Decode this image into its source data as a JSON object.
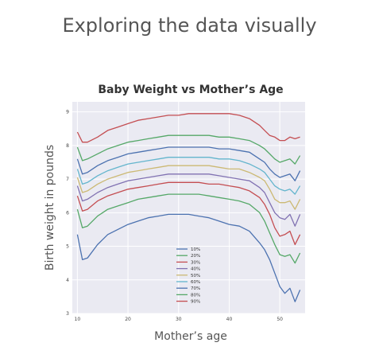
{
  "slide": {
    "title": "Exploring the data visually"
  },
  "chart_data": {
    "type": "line",
    "title": "Baby Weight vs Mother’s Age",
    "xlabel": "Mother’s age",
    "ylabel": "Birth weight in pounds",
    "xlim": [
      9,
      55
    ],
    "ylim": [
      3,
      9.3
    ],
    "xticks": [
      10,
      20,
      30,
      40,
      50
    ],
    "yticks": [
      3,
      4,
      5,
      6,
      7,
      8,
      9
    ],
    "grid": true,
    "legend_position": "bottom-center",
    "x": [
      10,
      11,
      12,
      14,
      16,
      18,
      20,
      22,
      24,
      26,
      28,
      30,
      32,
      34,
      36,
      38,
      40,
      42,
      44,
      46,
      47,
      48,
      49,
      50,
      51,
      52,
      53,
      54
    ],
    "series": [
      {
        "name": "10%",
        "color": "#4c72b0",
        "values": [
          5.35,
          4.6,
          4.65,
          5.05,
          5.35,
          5.5,
          5.65,
          5.75,
          5.85,
          5.9,
          5.95,
          5.95,
          5.95,
          5.9,
          5.85,
          5.75,
          5.65,
          5.6,
          5.45,
          5.1,
          4.9,
          4.6,
          4.2,
          3.8,
          3.6,
          3.75,
          3.35,
          3.7
        ]
      },
      {
        "name": "20%",
        "color": "#55a868",
        "values": [
          6.1,
          5.55,
          5.6,
          5.9,
          6.1,
          6.2,
          6.3,
          6.4,
          6.45,
          6.5,
          6.55,
          6.55,
          6.55,
          6.55,
          6.5,
          6.45,
          6.4,
          6.35,
          6.25,
          6.0,
          5.75,
          5.4,
          5.05,
          4.75,
          4.7,
          4.75,
          4.5,
          4.8
        ]
      },
      {
        "name": "30%",
        "color": "#c44e52",
        "values": [
          6.5,
          6.05,
          6.1,
          6.35,
          6.5,
          6.6,
          6.7,
          6.75,
          6.8,
          6.85,
          6.9,
          6.9,
          6.9,
          6.9,
          6.85,
          6.85,
          6.8,
          6.75,
          6.65,
          6.45,
          6.25,
          5.95,
          5.55,
          5.3,
          5.35,
          5.45,
          5.05,
          5.35
        ]
      },
      {
        "name": "40%",
        "color": "#8172b2",
        "values": [
          6.8,
          6.35,
          6.4,
          6.6,
          6.75,
          6.85,
          6.95,
          7.0,
          7.05,
          7.1,
          7.15,
          7.15,
          7.15,
          7.15,
          7.15,
          7.1,
          7.05,
          7.0,
          6.95,
          6.75,
          6.6,
          6.3,
          6.0,
          5.85,
          5.8,
          5.95,
          5.6,
          5.95
        ]
      },
      {
        "name": "50%",
        "color": "#ccb974",
        "values": [
          7.05,
          6.6,
          6.65,
          6.85,
          7.0,
          7.1,
          7.2,
          7.25,
          7.3,
          7.35,
          7.4,
          7.4,
          7.4,
          7.4,
          7.4,
          7.35,
          7.3,
          7.3,
          7.2,
          7.05,
          6.95,
          6.7,
          6.4,
          6.3,
          6.3,
          6.35,
          6.1,
          6.4
        ]
      },
      {
        "name": "60%",
        "color": "#64b5cd",
        "values": [
          7.3,
          6.85,
          6.9,
          7.1,
          7.25,
          7.35,
          7.45,
          7.5,
          7.55,
          7.6,
          7.65,
          7.65,
          7.65,
          7.65,
          7.65,
          7.6,
          7.6,
          7.55,
          7.45,
          7.3,
          7.2,
          7.0,
          6.8,
          6.7,
          6.65,
          6.7,
          6.55,
          6.8
        ]
      },
      {
        "name": "70%",
        "color": "#4c72b0",
        "values": [
          7.6,
          7.15,
          7.2,
          7.4,
          7.55,
          7.65,
          7.75,
          7.8,
          7.85,
          7.9,
          7.95,
          7.95,
          7.95,
          7.95,
          7.95,
          7.9,
          7.9,
          7.85,
          7.8,
          7.6,
          7.5,
          7.3,
          7.15,
          7.05,
          7.1,
          7.15,
          6.95,
          7.25
        ]
      },
      {
        "name": "80%",
        "color": "#55a868",
        "values": [
          7.95,
          7.55,
          7.6,
          7.75,
          7.9,
          8.0,
          8.1,
          8.15,
          8.2,
          8.25,
          8.3,
          8.3,
          8.3,
          8.3,
          8.3,
          8.25,
          8.25,
          8.2,
          8.15,
          8.0,
          7.9,
          7.75,
          7.6,
          7.5,
          7.55,
          7.6,
          7.45,
          7.7
        ]
      },
      {
        "name": "90%",
        "color": "#c44e52",
        "values": [
          8.4,
          8.1,
          8.1,
          8.25,
          8.45,
          8.55,
          8.65,
          8.75,
          8.8,
          8.85,
          8.9,
          8.9,
          8.95,
          8.95,
          8.95,
          8.95,
          8.95,
          8.9,
          8.8,
          8.6,
          8.45,
          8.3,
          8.25,
          8.15,
          8.15,
          8.25,
          8.2,
          8.25
        ]
      }
    ]
  }
}
